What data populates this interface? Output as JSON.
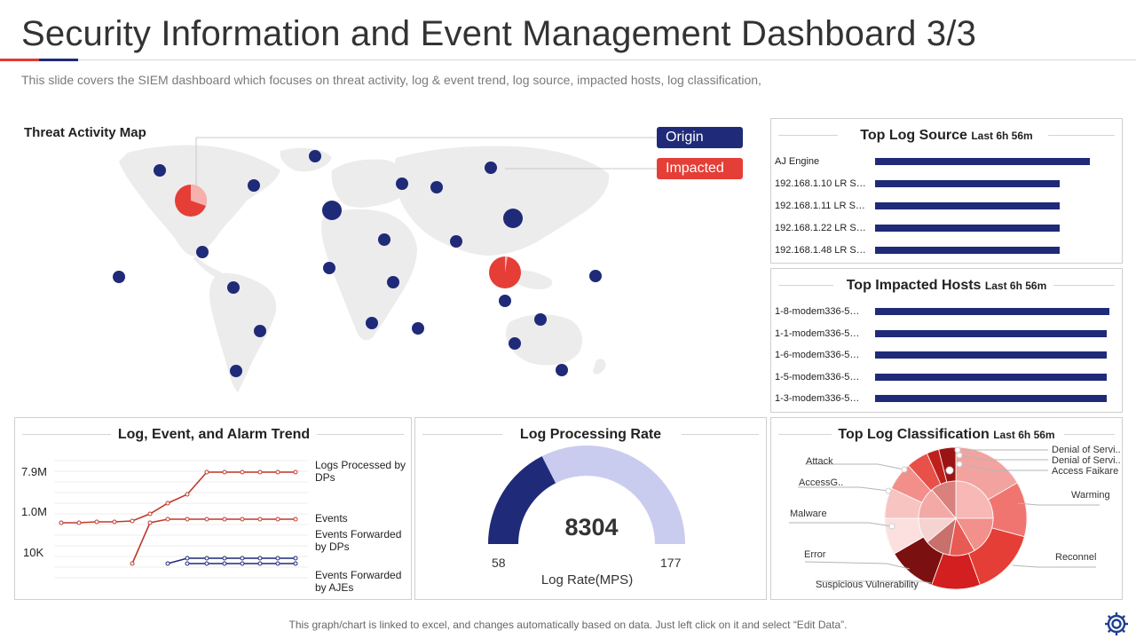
{
  "header": {
    "title": "Security Information and Event Management Dashboard 3/3",
    "subtitle": "This slide covers the SIEM dashboard which focuses on threat activity, log & event trend, log source, impacted hosts, log classification,"
  },
  "colors": {
    "accent_red": "#e53e36",
    "navy": "#1f2a78",
    "light_lavender": "#c9cbef"
  },
  "threat_map": {
    "title": "Threat Activity Map",
    "legend": [
      {
        "label": "Origin",
        "color": "#1f2a78"
      },
      {
        "label": "Impacted",
        "color": "#e53e36"
      }
    ]
  },
  "log_source": {
    "title": "Top Log Source",
    "suffix": "Last 6h 56m",
    "items": [
      {
        "label": "AJ Engine",
        "value": 100
      },
      {
        "label": "192.168.1.10 LR S…",
        "value": 86
      },
      {
        "label": "192.168.1.11 LR S…",
        "value": 86
      },
      {
        "label": "192.168.1.22 LR S…",
        "value": 86
      },
      {
        "label": "192.168.1.48 LR S…",
        "value": 86
      }
    ]
  },
  "impacted_hosts": {
    "title": "Top Impacted Hosts",
    "suffix": "Last 6h 56m",
    "items": [
      {
        "label": "1-8-modem336-5…",
        "value": 100
      },
      {
        "label": "1-1-modem336-5…",
        "value": 99
      },
      {
        "label": "1-6-modem336-5…",
        "value": 99
      },
      {
        "label": "1-5-modem336-5…",
        "value": 99
      },
      {
        "label": "1-3-modem336-5…",
        "value": 99
      }
    ]
  },
  "trend": {
    "title": "Log, Event, and Alarm  Trend",
    "y_ticks": [
      "7.9M",
      "1.0M",
      "10K"
    ],
    "series_labels": [
      "Logs Processed by DPs",
      "Events",
      "Events Forwarded by DPs",
      "Events Forwarded by AJEs"
    ]
  },
  "processing_rate": {
    "title": "Log Processing Rate",
    "value": "8304",
    "min": "58",
    "max": "177",
    "unit_label": "Log Rate(MPS)",
    "fill_fraction": 0.35
  },
  "classification": {
    "title": "Top Log Classification",
    "suffix": "Last 6h 56m",
    "labels": [
      "Denial of Servi..",
      "Denial of Servi..",
      "Access Faikare",
      "Warming",
      "Reconnel",
      "Suspicious Vulnerability",
      "Error",
      "Malware",
      "AccessG..",
      "Attack"
    ]
  },
  "footer": {
    "note": "This graph/chart is linked to excel, and changes automatically based on data. Just left click on it and select “Edit Data”."
  }
}
